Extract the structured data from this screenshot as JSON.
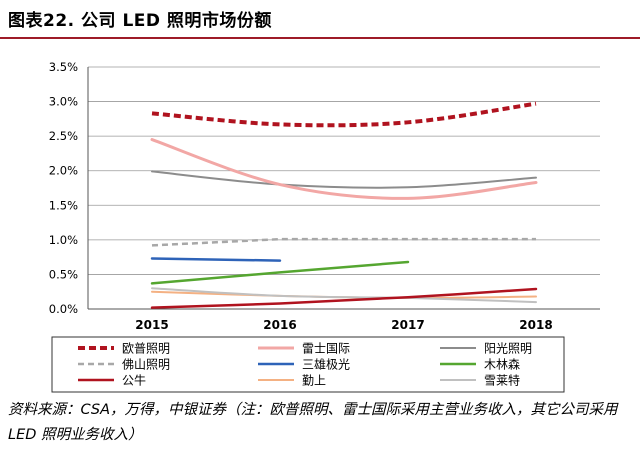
{
  "title": "图表22.  公司 LED 照明市场份额",
  "source": "资料来源：CSA，万得，中银证券（注：欧普照明、雷士国际采用主营业务收入，其它公司采用 LED 照明业务收入）",
  "chart_data": {
    "type": "line",
    "x": [
      "2015",
      "2016",
      "2017",
      "2018"
    ],
    "ylim": [
      0,
      3.5
    ],
    "yticks": [
      "0.0%",
      "0.5%",
      "1.0%",
      "1.5%",
      "2.0%",
      "2.5%",
      "3.0%",
      "3.5%"
    ],
    "grid": true,
    "legend_position": "bottom",
    "series": [
      {
        "name": "欧普照明",
        "color": "#b0131f",
        "dash": "7,4",
        "width": 4,
        "smooth": true,
        "values": [
          2.83,
          2.67,
          2.7,
          2.97
        ]
      },
      {
        "name": "雷士国际",
        "color": "#f2a7a5",
        "dash": "",
        "width": 3,
        "smooth": true,
        "values": [
          2.45,
          1.8,
          1.6,
          1.83
        ]
      },
      {
        "name": "阳光照明",
        "color": "#8c8c8c",
        "dash": "",
        "width": 2,
        "smooth": true,
        "values": [
          1.99,
          1.8,
          1.76,
          1.9
        ]
      },
      {
        "name": "佛山照明",
        "color": "#a8a8a8",
        "dash": "6,4",
        "width": 2.5,
        "smooth": false,
        "values": [
          0.92,
          1.01,
          1.01,
          1.01
        ]
      },
      {
        "name": "三雄极光",
        "color": "#2e63b8",
        "dash": "",
        "width": 2.5,
        "smooth": false,
        "values": [
          0.73,
          0.7,
          null,
          null
        ]
      },
      {
        "name": "木林森",
        "color": "#55a630",
        "dash": "",
        "width": 2.5,
        "smooth": false,
        "values": [
          0.37,
          0.53,
          0.68,
          null
        ]
      },
      {
        "name": "公牛",
        "color": "#b0131f",
        "dash": "",
        "width": 2.5,
        "smooth": true,
        "values": [
          0.02,
          0.08,
          0.17,
          0.29
        ]
      },
      {
        "name": "勤上",
        "color": "#f4b183",
        "dash": "",
        "width": 2,
        "smooth": true,
        "values": [
          0.25,
          0.19,
          0.16,
          0.18
        ]
      },
      {
        "name": "雪莱特",
        "color": "#c0c0c0",
        "dash": "",
        "width": 2,
        "smooth": true,
        "values": [
          0.3,
          0.19,
          0.16,
          0.1
        ]
      }
    ]
  }
}
